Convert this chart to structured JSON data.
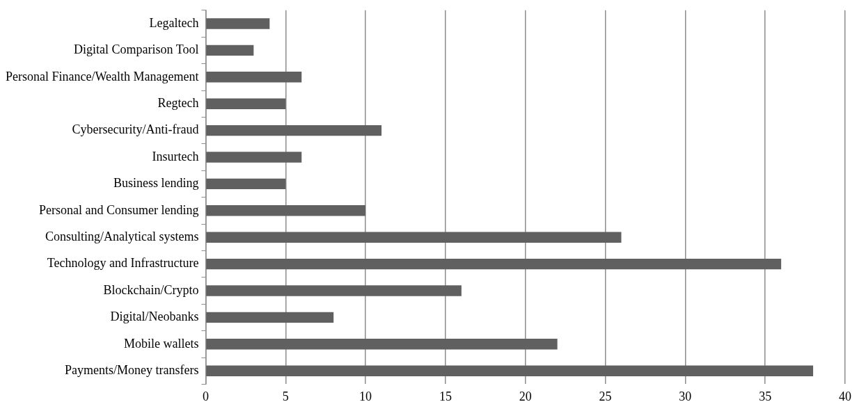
{
  "chart_data": {
    "type": "bar",
    "orientation": "horizontal",
    "categories": [
      "Legaltech",
      "Digital Comparison Tool",
      "Personal Finance/Wealth Management",
      "Regtech",
      "Cybersecurity/Anti-fraud",
      "Insurtech",
      "Business lending",
      "Personal and Consumer lending",
      "Consulting/Analytical systems",
      "Technology and Infrastructure",
      "Blockchain/Crypto",
      "Digital/Neobanks",
      "Mobile wallets",
      "Payments/Money transfers"
    ],
    "values": [
      4,
      3,
      6,
      5,
      11,
      6,
      5,
      10,
      26,
      36,
      16,
      8,
      22,
      38
    ],
    "color": "#606060",
    "xlim": [
      0,
      40
    ],
    "xticks": [
      0,
      5,
      10,
      15,
      20,
      25,
      30,
      35,
      40
    ],
    "grid": "x",
    "legend": false
  }
}
